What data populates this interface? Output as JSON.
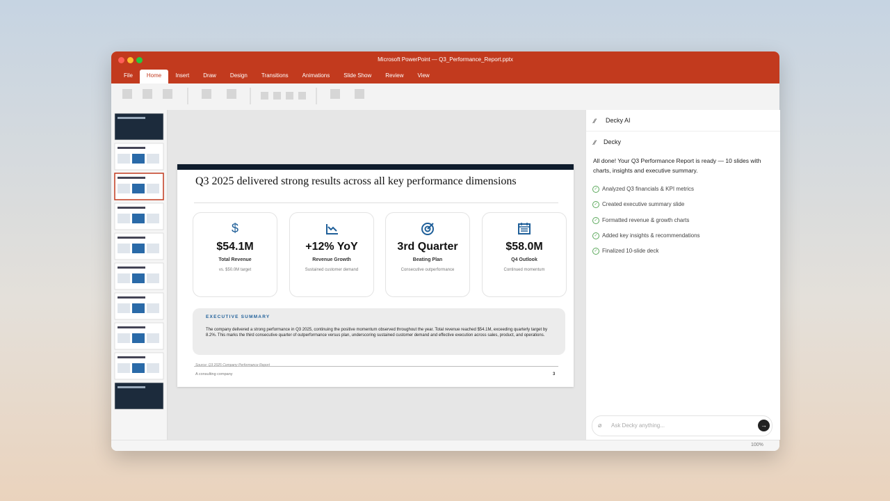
{
  "window": {
    "title": "Microsoft PowerPoint — Q3_Performance_Report.pptx",
    "tabs": [
      "File",
      "Home",
      "Insert",
      "Draw",
      "Design",
      "Transitions",
      "Animations",
      "Slide Show",
      "Review",
      "View"
    ],
    "zoom": "100%"
  },
  "slide": {
    "title": "Q3 2025 delivered strong results across all key performance dimensions",
    "cards": [
      {
        "value": "$54.1M",
        "label": "Total Revenue",
        "note": "vs. $50.0M target"
      },
      {
        "value": "+12% YoY",
        "label": "Revenue Growth",
        "note": "Sustained customer demand"
      },
      {
        "value": "3rd Quarter",
        "label": "Beating Plan",
        "note": "Consecutive outperformance"
      },
      {
        "value": "$58.0M",
        "label": "Q4 Outlook",
        "note": "Continued momentum"
      }
    ],
    "summary": {
      "heading": "EXECUTIVE SUMMARY",
      "body": "The company delivered a strong performance in Q3 2025, continuing the positive momentum observed throughout the year. Total revenue reached $54.1M, exceeding quarterly target by 8.2%. This marks the third consecutive quarter of outperformance versus plan, underscoring sustained customer demand and effective execution across sales, product, and operations."
    },
    "source": "Source: Q3 2025 Company Performance Report",
    "footer": "A consulting company",
    "page": "3"
  },
  "assistant": {
    "header": "Decky AI",
    "sender": "Decky",
    "message": "All done! Your Q3 Performance Report is ready — 10 slides with charts, insights and executive summary.",
    "steps": [
      "Analyzed Q3 financials & KPI metrics",
      "Created executive summary slide",
      "Formatted revenue & growth charts",
      "Added key insights & recommendations",
      "Finalized 10-slide deck"
    ],
    "placeholder": "Ask Decky anything..."
  }
}
